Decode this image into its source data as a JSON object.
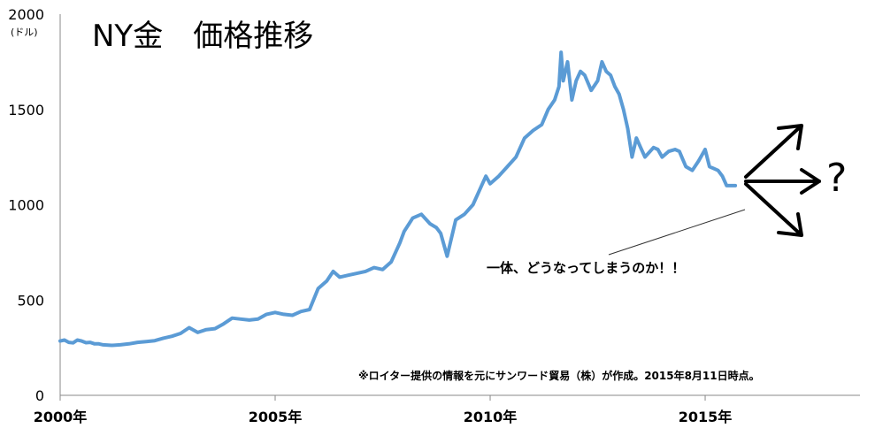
{
  "chart_data": {
    "type": "line",
    "title": "NY金　価格推移",
    "ylabel": "(ドル)",
    "xlabel": "",
    "ylim": [
      0,
      2000
    ],
    "xlim": [
      2000,
      2018.6
    ],
    "grid": false,
    "yticks": [
      0,
      500,
      1000,
      1500,
      2000
    ],
    "ytick_labels": [
      "0",
      "500",
      "1000",
      "1500",
      "2000"
    ],
    "xticks": [
      2000,
      2005,
      2010,
      2015
    ],
    "xtick_labels": [
      "2000年",
      "2005年",
      "2010年",
      "2015年"
    ],
    "series_color": "#5b9bd5",
    "series": [
      {
        "x": [
          2000.0,
          2000.1,
          2000.2,
          2000.3,
          2000.4,
          2000.5,
          2000.6,
          2000.7,
          2000.8,
          2000.9,
          2001.0,
          2001.2,
          2001.4,
          2001.6,
          2001.8,
          2002.0,
          2002.2,
          2002.4,
          2002.6,
          2002.8,
          2003.0,
          2003.2,
          2003.4,
          2003.6,
          2003.8,
          2004.0,
          2004.2,
          2004.4,
          2004.6,
          2004.8,
          2005.0,
          2005.2,
          2005.4,
          2005.6,
          2005.8,
          2006.0,
          2006.2,
          2006.35,
          2006.5,
          2006.7,
          2006.9,
          2007.1,
          2007.3,
          2007.5,
          2007.7,
          2007.9,
          2008.0,
          2008.2,
          2008.4,
          2008.6,
          2008.75,
          2008.85,
          2009.0,
          2009.2,
          2009.4,
          2009.6,
          2009.8,
          2009.9,
          2010.0,
          2010.2,
          2010.4,
          2010.6,
          2010.8,
          2011.0,
          2011.2,
          2011.35,
          2011.5,
          2011.6,
          2011.65,
          2011.7,
          2011.8,
          2011.9,
          2012.0,
          2012.1,
          2012.2,
          2012.35,
          2012.5,
          2012.6,
          2012.7,
          2012.8,
          2012.9,
          2013.0,
          2013.1,
          2013.2,
          2013.3,
          2013.4,
          2013.5,
          2013.6,
          2013.8,
          2013.9,
          2014.0,
          2014.15,
          2014.3,
          2014.4,
          2014.55,
          2014.7,
          2014.85,
          2015.0,
          2015.1,
          2015.2,
          2015.3,
          2015.4,
          2015.5,
          2015.6,
          2015.7
        ],
        "values": [
          285,
          290,
          278,
          275,
          290,
          285,
          276,
          278,
          270,
          270,
          265,
          262,
          265,
          270,
          278,
          282,
          287,
          300,
          310,
          325,
          355,
          330,
          345,
          350,
          375,
          405,
          400,
          395,
          400,
          425,
          435,
          425,
          420,
          440,
          450,
          560,
          600,
          650,
          620,
          630,
          640,
          650,
          670,
          660,
          700,
          800,
          860,
          930,
          950,
          900,
          880,
          850,
          730,
          920,
          950,
          1000,
          1100,
          1150,
          1110,
          1150,
          1200,
          1250,
          1350,
          1390,
          1420,
          1500,
          1550,
          1620,
          1800,
          1650,
          1750,
          1550,
          1650,
          1700,
          1680,
          1600,
          1650,
          1750,
          1700,
          1680,
          1620,
          1580,
          1500,
          1400,
          1250,
          1350,
          1300,
          1250,
          1300,
          1290,
          1250,
          1280,
          1290,
          1280,
          1200,
          1180,
          1230,
          1290,
          1200,
          1190,
          1180,
          1150,
          1100,
          1100,
          1100
        ]
      }
    ],
    "annotations": [
      "一体、どうなってしまうのか！！",
      "?",
      "※ロイター提供の情報を元にサンワード貿易（株）が作成。2015年8月11日時点。"
    ]
  }
}
